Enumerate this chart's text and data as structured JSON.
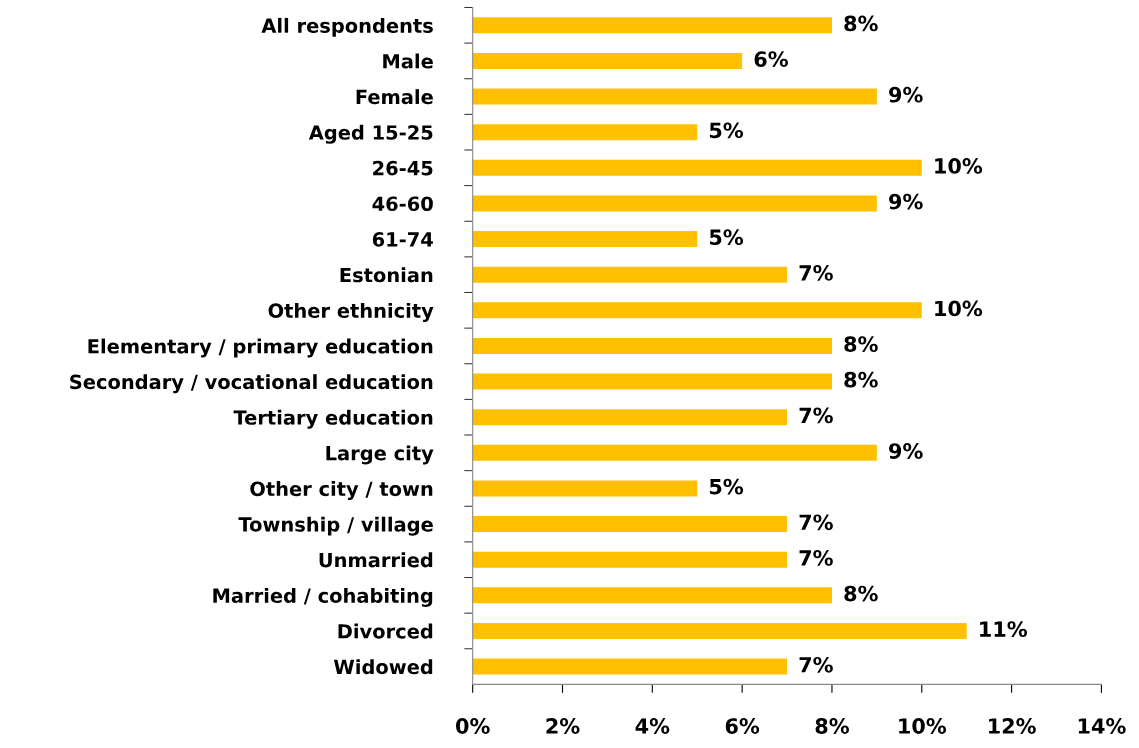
{
  "chart_data": {
    "type": "bar",
    "orientation": "horizontal",
    "categories": [
      "All respondents",
      "Male",
      "Female",
      "Aged 15-25",
      "26-45",
      "46-60",
      "61-74",
      "Estonian",
      "Other ethnicity",
      "Elementary / primary education",
      "Secondary / vocational education",
      "Tertiary education",
      "Large city",
      "Other city / town",
      "Township / village",
      "Unmarried",
      "Married / cohabiting",
      "Divorced",
      "Widowed"
    ],
    "values": [
      8,
      6,
      9,
      5,
      10,
      9,
      5,
      7,
      10,
      8,
      8,
      7,
      9,
      5,
      7,
      7,
      8,
      11,
      7
    ],
    "value_labels": [
      "8%",
      "6%",
      "9%",
      "5%",
      "10%",
      "9%",
      "5%",
      "7%",
      "10%",
      "8%",
      "8%",
      "7%",
      "9%",
      "5%",
      "7%",
      "7%",
      "8%",
      "11%",
      "7%"
    ],
    "color": "#ffc000",
    "xlim": [
      0,
      14
    ],
    "xticks": [
      {
        "value": 0,
        "label": "0%"
      },
      {
        "value": 2,
        "label": "2%"
      },
      {
        "value": 4,
        "label": "4%"
      },
      {
        "value": 6,
        "label": "6%"
      },
      {
        "value": 8,
        "label": "8%"
      },
      {
        "value": 10,
        "label": "10%"
      },
      {
        "value": 12,
        "label": "12%"
      },
      {
        "value": 14,
        "label": "14%"
      }
    ],
    "grid": false,
    "legend": false
  }
}
